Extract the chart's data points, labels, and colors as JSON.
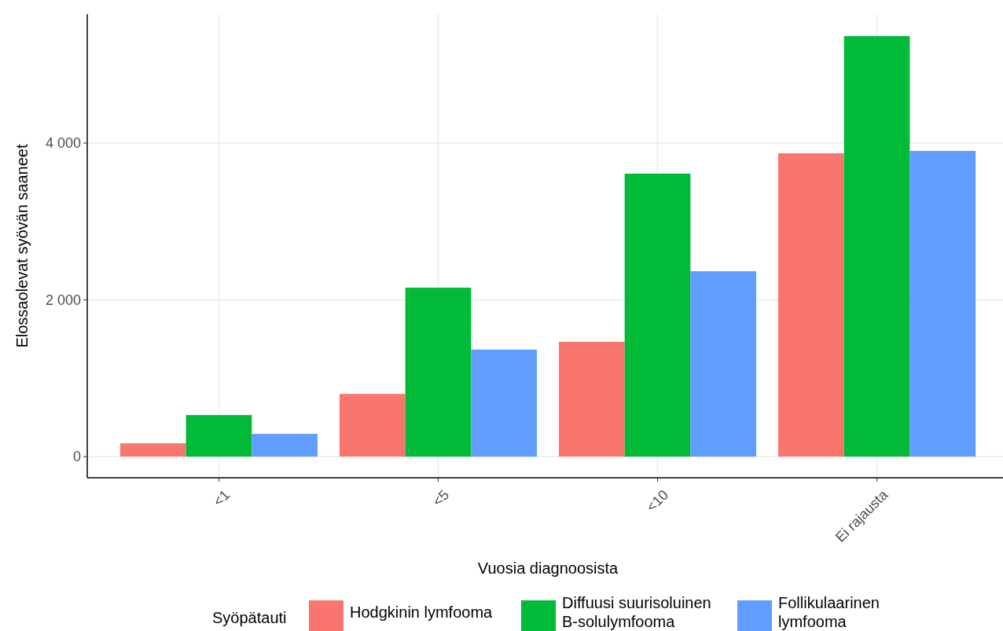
{
  "chart_data": {
    "type": "bar",
    "xlabel": "Vuosia diagnoosista",
    "ylabel": "Elossaolevat syövän saaneet",
    "legend_title": "Syöpätauti",
    "categories": [
      "<1",
      "<5",
      "<10",
      "Ei rajausta"
    ],
    "series": [
      {
        "name": "Hodgkinin lymfooma",
        "color": "#f8766d",
        "values": [
          170,
          800,
          1465,
          3870
        ]
      },
      {
        "name": "Diffuusi suurisoluinen\nB-solulymfooma",
        "color": "#00ba38",
        "values": [
          530,
          2155,
          3610,
          5365
        ]
      },
      {
        "name": "Follikulaarinen\nlymfooma",
        "color": "#619cff",
        "values": [
          290,
          1365,
          2365,
          3900
        ]
      }
    ],
    "ylim": [
      -270,
      5645
    ],
    "yticks": [
      0,
      {
        "value": 2000,
        "label": "2 000"
      },
      {
        "value": 4000,
        "label": "4 000"
      }
    ],
    "grid": true,
    "legend": "bottom"
  }
}
